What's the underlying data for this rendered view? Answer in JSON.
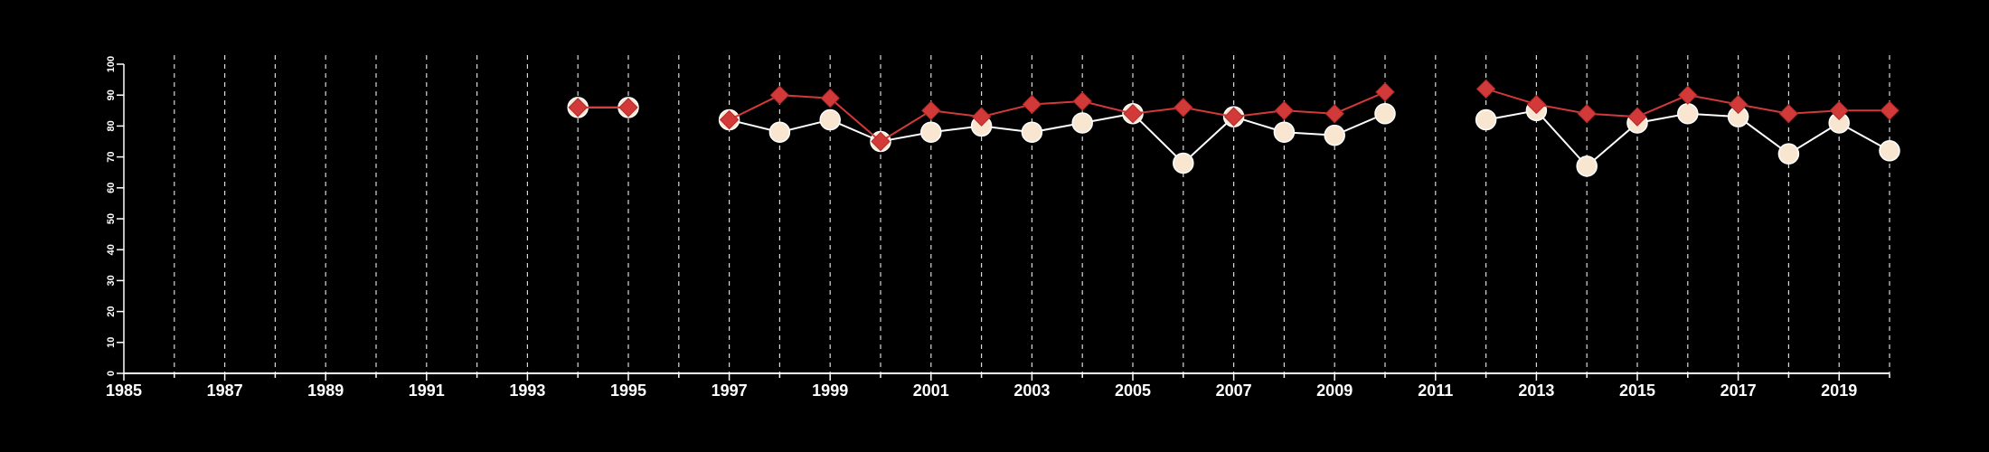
{
  "chart_data": {
    "type": "line",
    "title": "",
    "xlabel": "",
    "ylabel": "",
    "xlim": [
      1985,
      2020
    ],
    "ylim": [
      0,
      100
    ],
    "x_ticks": [
      1985,
      1987,
      1989,
      1991,
      1993,
      1995,
      1997,
      1999,
      2001,
      2003,
      2005,
      2007,
      2009,
      2011,
      2013,
      2015,
      2017,
      2019
    ],
    "x_tick_labels": [
      "1985",
      "1987",
      "1989",
      "1991",
      "1993",
      "1995",
      "1997",
      "1999",
      "2001",
      "2003",
      "2005",
      "2007",
      "2009",
      "2011",
      "2013",
      "2015",
      "2017",
      "2019"
    ],
    "y_ticks": [
      0,
      10,
      20,
      30,
      40,
      50,
      60,
      70,
      80,
      90,
      100
    ],
    "y_tick_labels": [
      "0",
      "10",
      "20",
      "30",
      "40",
      "50",
      "60",
      "70",
      "80",
      "90",
      "100"
    ],
    "vertical_gridlines": [
      1986,
      1987,
      1988,
      1989,
      1990,
      1991,
      1992,
      1993,
      1994,
      1995,
      1996,
      1997,
      1998,
      1999,
      2000,
      2001,
      2002,
      2003,
      2004,
      2005,
      2006,
      2007,
      2008,
      2009,
      2010,
      2011,
      2012,
      2013,
      2014,
      2015,
      2016,
      2017,
      2018,
      2019,
      2020
    ],
    "grid": "vertical dashed",
    "legend": "none",
    "series": [
      {
        "marker": "circle",
        "color": "#ffffff",
        "fill": "#f8e6d0",
        "points": [
          [
            1994,
            86
          ],
          [
            1995,
            86
          ],
          null,
          [
            1997,
            82
          ],
          [
            1998,
            78
          ],
          [
            1999,
            82
          ],
          [
            2000,
            75
          ],
          [
            2001,
            78
          ],
          [
            2002,
            80
          ],
          [
            2003,
            78
          ],
          [
            2004,
            81
          ],
          [
            2005,
            84
          ],
          [
            2006,
            68
          ],
          [
            2007,
            83
          ],
          [
            2008,
            78
          ],
          [
            2009,
            77
          ],
          [
            2010,
            84
          ],
          null,
          [
            2012,
            82
          ],
          [
            2013,
            85
          ],
          [
            2014,
            67
          ],
          [
            2015,
            81
          ],
          [
            2016,
            84
          ],
          [
            2017,
            83
          ],
          [
            2018,
            71
          ],
          [
            2019,
            81
          ],
          [
            2020,
            72
          ]
        ]
      },
      {
        "marker": "diamond",
        "color": "#d23a3a",
        "fill": "#d23a3a",
        "points": [
          [
            1994,
            86
          ],
          [
            1995,
            86
          ],
          null,
          [
            1997,
            82
          ],
          [
            1998,
            90
          ],
          [
            1999,
            89
          ],
          [
            2000,
            75
          ],
          [
            2001,
            85
          ],
          [
            2002,
            83
          ],
          [
            2003,
            87
          ],
          [
            2004,
            88
          ],
          [
            2005,
            84
          ],
          [
            2006,
            86
          ],
          [
            2007,
            83
          ],
          [
            2008,
            85
          ],
          [
            2009,
            84
          ],
          [
            2010,
            91
          ],
          null,
          [
            2012,
            92
          ],
          [
            2013,
            87
          ],
          [
            2014,
            84
          ],
          [
            2015,
            83
          ],
          [
            2016,
            90
          ],
          [
            2017,
            87
          ],
          [
            2018,
            84
          ],
          [
            2019,
            85
          ],
          [
            2020,
            85
          ]
        ]
      }
    ]
  }
}
